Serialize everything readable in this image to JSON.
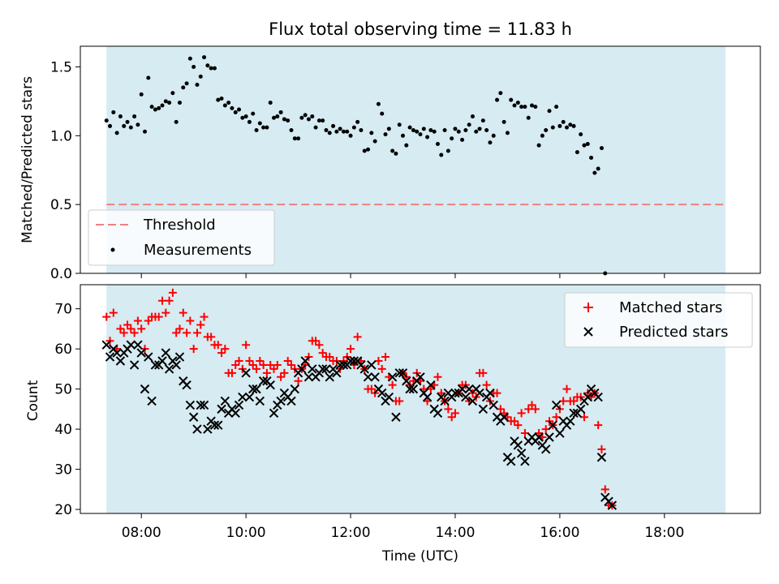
{
  "chart_data": [
    {
      "type": "scatter",
      "title": "Flux total observing time = 11.83 h",
      "xlabel": "",
      "ylabel": "Matched/Predicted stars",
      "xlim": [
        "06:50",
        "19:50"
      ],
      "ylim": [
        0,
        1.65
      ],
      "y_ticks": [
        "0.0",
        "0.5",
        "1.0",
        "1.5"
      ],
      "observing_window": [
        "07:20",
        "19:10"
      ],
      "legend_position": "lower-left",
      "threshold": {
        "name": "Threshold",
        "value": 0.5,
        "color": "#f08080",
        "x_range": [
          "07:20",
          "19:10"
        ]
      },
      "series": [
        {
          "name": "Measurements",
          "color": "#000000",
          "marker": "dot",
          "x_start": "07:20",
          "x_step_minutes": 4,
          "values": [
            1.11,
            1.07,
            1.17,
            1.02,
            1.14,
            1.07,
            1.1,
            1.06,
            1.14,
            1.08,
            1.3,
            1.03,
            1.42,
            1.21,
            1.19,
            1.2,
            1.22,
            1.25,
            1.24,
            1.31,
            1.1,
            1.24,
            1.35,
            1.38,
            1.56,
            1.5,
            1.37,
            1.43,
            1.57,
            1.51,
            1.49,
            1.49,
            1.26,
            1.27,
            1.22,
            1.24,
            1.2,
            1.17,
            1.19,
            1.13,
            1.14,
            1.1,
            1.16,
            1.04,
            1.09,
            1.06,
            1.06,
            1.24,
            1.13,
            1.14,
            1.17,
            1.12,
            1.11,
            1.04,
            0.98,
            0.98,
            1.13,
            1.15,
            1.12,
            1.14,
            1.06,
            1.11,
            1.11,
            1.04,
            1.02,
            1.07,
            1.03,
            1.05,
            1.03,
            1.03,
            1.0,
            1.06,
            1.1,
            1.04,
            0.89,
            0.9,
            1.02,
            0.96,
            1.23,
            1.16,
            1.01,
            1.05,
            0.89,
            0.87,
            1.08,
            1.0,
            0.93,
            1.06,
            1.04,
            1.03,
            1.01,
            1.05,
            0.99,
            1.04,
            1.03,
            0.94,
            0.86,
            1.04,
            0.89,
            0.98,
            1.05,
            1.03,
            0.97,
            1.04,
            1.08,
            1.14,
            1.03,
            1.05,
            1.11,
            1.04,
            0.95,
            1.0,
            1.26,
            1.31,
            1.1,
            1.02,
            1.26,
            1.22,
            1.24,
            1.21,
            1.21,
            1.13,
            1.22,
            1.21,
            0.93,
            1.0,
            1.04,
            1.18,
            1.06,
            1.21,
            1.07,
            1.1,
            1.06,
            1.08,
            1.07,
            0.88,
            1.01,
            0.93,
            0.94,
            0.84,
            0.73,
            0.76,
            0.91,
            0.0
          ]
        }
      ]
    },
    {
      "type": "scatter",
      "title": "",
      "xlabel": "Time (UTC)",
      "ylabel": "Count",
      "xlim": [
        "06:50",
        "19:50"
      ],
      "ylim": [
        19,
        76
      ],
      "x_ticks": [
        "08:00",
        "10:00",
        "12:00",
        "14:00",
        "16:00",
        "18:00"
      ],
      "y_ticks": [
        "20",
        "30",
        "40",
        "50",
        "60",
        "70"
      ],
      "observing_window": [
        "07:20",
        "19:10"
      ],
      "legend_position": "top-right",
      "series": [
        {
          "name": "Matched stars",
          "color": "#ff0000",
          "marker": "plus",
          "x_start": "07:20",
          "x_step_minutes": 4,
          "values": [
            68,
            62,
            69,
            60,
            65,
            64,
            66,
            65,
            64,
            67,
            65,
            60,
            67,
            68,
            68,
            68,
            72,
            69,
            72,
            74,
            64,
            65,
            69,
            64,
            67,
            60,
            64,
            66,
            68,
            63,
            63,
            61,
            61,
            59,
            60,
            54,
            54,
            56,
            57,
            55,
            61,
            57,
            56,
            55,
            57,
            56,
            54,
            56,
            55,
            56,
            53,
            54,
            57,
            56,
            55,
            52,
            55,
            56,
            58,
            62,
            62,
            61,
            59,
            58,
            58,
            57,
            57,
            55,
            57,
            58,
            60,
            56,
            63,
            57,
            55,
            50,
            50,
            49,
            57,
            55,
            58,
            53,
            51,
            47,
            47,
            54,
            53,
            51,
            52,
            54,
            52,
            50,
            47,
            50,
            51,
            53,
            49,
            47,
            45,
            43,
            44,
            49,
            51,
            51,
            47,
            49,
            48,
            54,
            54,
            51,
            47,
            49,
            49,
            45,
            44,
            43,
            42,
            42,
            41,
            44,
            39,
            45,
            46,
            45,
            39,
            38,
            40,
            42,
            41,
            43,
            45,
            47,
            50,
            47,
            47,
            48,
            48,
            43,
            49,
            48,
            49,
            41,
            35,
            25,
            21,
            21
          ]
        },
        {
          "name": "Predicted stars",
          "color": "#000000",
          "marker": "x",
          "x_start": "07:20",
          "x_step_minutes": 4,
          "values": [
            61,
            58,
            60,
            59,
            57,
            59,
            60,
            61,
            56,
            61,
            59,
            50,
            58,
            47,
            56,
            56,
            57,
            59,
            55,
            57,
            56,
            58,
            52,
            51,
            46,
            43,
            40,
            46,
            46,
            40,
            42,
            41,
            41,
            45,
            47,
            44,
            45,
            44,
            46,
            48,
            54,
            48,
            50,
            50,
            47,
            52,
            52,
            51,
            44,
            46,
            47,
            49,
            48,
            47,
            50,
            54,
            55,
            57,
            53,
            55,
            53,
            54,
            55,
            55,
            53,
            55,
            54,
            56,
            56,
            56,
            57,
            57,
            57,
            56,
            55,
            53,
            56,
            53,
            50,
            49,
            47,
            48,
            53,
            43,
            54,
            54,
            52,
            50,
            50,
            52,
            53,
            49,
            48,
            51,
            45,
            44,
            48,
            47,
            49,
            48,
            49,
            49,
            50,
            48,
            50,
            47,
            50,
            49,
            45,
            48,
            49,
            46,
            43,
            42,
            43,
            33,
            32,
            37,
            36,
            34,
            32,
            37,
            38,
            37,
            38,
            36,
            35,
            38,
            41,
            46,
            39,
            42,
            41,
            42,
            44,
            44,
            45,
            47,
            48,
            50,
            49,
            48,
            33,
            23,
            22,
            21
          ]
        }
      ]
    }
  ]
}
